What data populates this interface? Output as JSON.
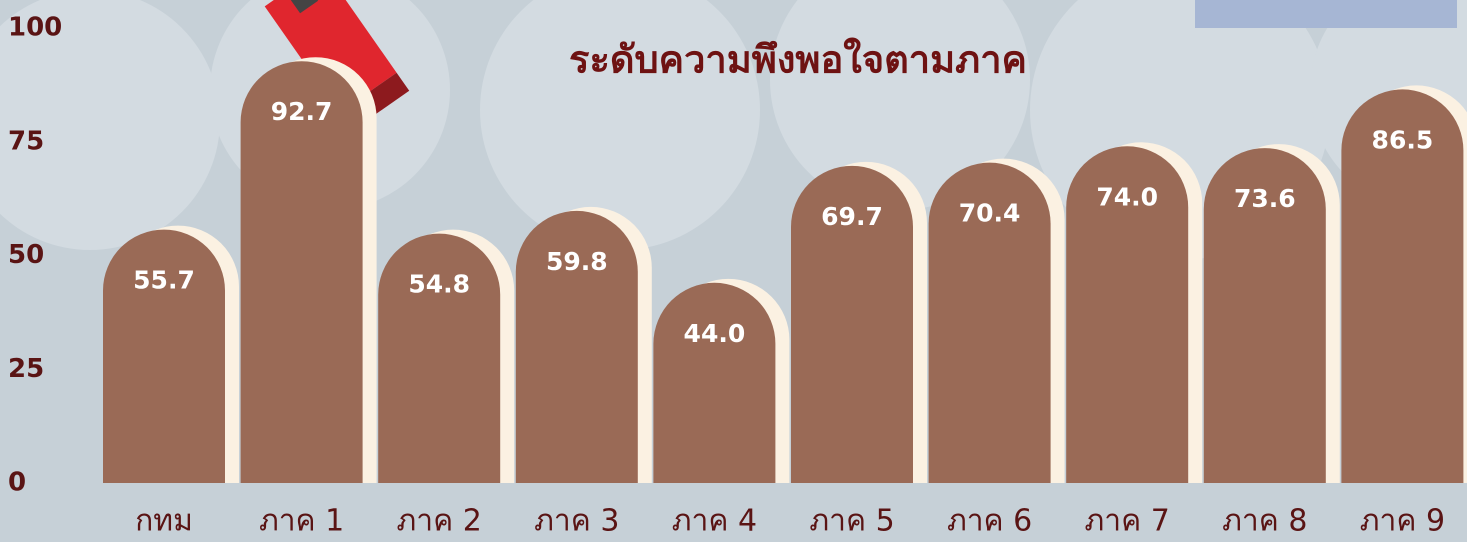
{
  "chart_data": {
    "type": "bar",
    "title": "ระดับความพึงพอใจตามภาค",
    "categories": [
      "กทม",
      "ภาค 1",
      "ภาค 2",
      "ภาค 3",
      "ภาค 4",
      "ภาค 5",
      "ภาค 6",
      "ภาค 7",
      "ภาค 8",
      "ภาค 9"
    ],
    "values": [
      55.7,
      92.7,
      54.8,
      59.8,
      44.0,
      69.7,
      70.4,
      74.0,
      73.6,
      86.5
    ],
    "value_labels": [
      "55.7",
      "92.7",
      "54.8",
      "59.8",
      "44.0",
      "69.7",
      "70.4",
      "74.0",
      "73.6",
      "86.5"
    ],
    "color": "#9a6a56",
    "ylim": [
      0,
      100
    ],
    "yticks": [
      0,
      25,
      50,
      75,
      100
    ],
    "grid": false
  }
}
